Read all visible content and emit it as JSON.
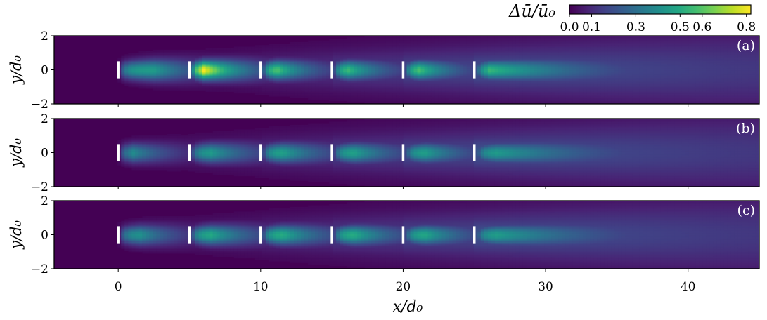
{
  "chart_data": {
    "type": "heatmap",
    "colormap": "viridis",
    "colorbar": {
      "label": "Δū/ū₀",
      "range": [
        0.0,
        0.82
      ],
      "ticks": [
        0.0,
        0.1,
        0.3,
        0.5,
        0.6,
        0.8
      ],
      "tick_labels": [
        "0.0",
        "0.1",
        "0.3",
        "0.5",
        "0.6",
        "0.8"
      ]
    },
    "xlabel": "x/d₀",
    "xlim": [
      -4.5,
      45
    ],
    "xticks": [
      0,
      10,
      20,
      30,
      40
    ],
    "xtick_labels": [
      "0",
      "10",
      "20",
      "30",
      "40"
    ],
    "ylabel": "y/d₀",
    "ylim": [
      -2,
      2
    ],
    "yticks": [
      -2,
      0,
      2
    ],
    "ytick_labels": [
      "−2",
      "0",
      "2"
    ],
    "turbine_x": [
      0,
      5,
      10,
      15,
      20,
      25
    ],
    "turbine_half_span": 0.5,
    "panels": [
      {
        "label": "(a)",
        "peak_values": [
          0.45,
          0.82,
          0.62,
          0.58,
          0.6,
          0.55
        ],
        "peak_offset": [
          2.5,
          1.0,
          1.0,
          1.0,
          1.0,
          1.0
        ],
        "decay": [
          3.5,
          3.0,
          2.8,
          3.0,
          3.0,
          4.5
        ]
      },
      {
        "label": "(b)",
        "peak_values": [
          0.4,
          0.45,
          0.48,
          0.48,
          0.47,
          0.45
        ],
        "peak_offset": [
          1.0,
          1.5,
          1.5,
          1.5,
          1.5,
          1.5
        ],
        "decay": [
          3.0,
          3.5,
          3.5,
          3.5,
          3.5,
          5.0
        ]
      },
      {
        "label": "(c)",
        "peak_values": [
          0.42,
          0.5,
          0.52,
          0.52,
          0.5,
          0.46
        ],
        "peak_offset": [
          1.5,
          1.5,
          1.5,
          1.5,
          1.5,
          1.5
        ],
        "decay": [
          3.0,
          3.5,
          3.5,
          3.5,
          3.5,
          5.0
        ]
      }
    ],
    "colors": {
      "background": "#440154",
      "turbine_marker": "#ffffff",
      "axes": "#000000"
    }
  }
}
